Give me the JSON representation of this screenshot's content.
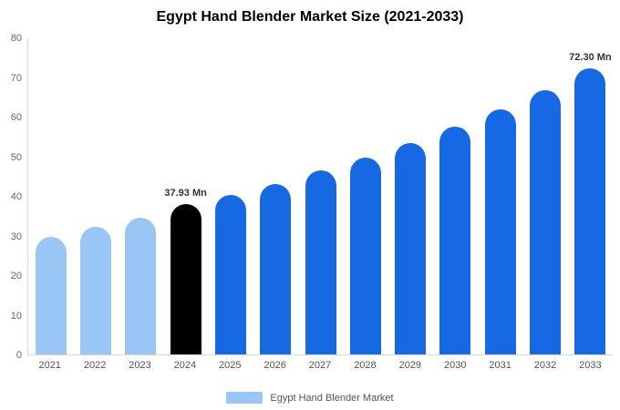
{
  "title": "Egypt Hand Blender Market Size (2021-2033)",
  "legend": {
    "label": "Egypt Hand Blender Market",
    "swatch_color": "#99C6F5"
  },
  "colors": {
    "historical": "#99C6F5",
    "base_year": "#000000",
    "forecast": "#1668E3",
    "axis_line": "#d6d6d6",
    "tick_text": "#666666",
    "annotation_text": "#333333"
  },
  "chart_data": {
    "type": "bar",
    "title": "Egypt Hand Blender Market Size (2021-2033)",
    "categories": [
      "2021",
      "2022",
      "2023",
      "2024",
      "2025",
      "2026",
      "2027",
      "2028",
      "2029",
      "2030",
      "2031",
      "2032",
      "2033"
    ],
    "values": [
      29.8,
      32.3,
      34.6,
      37.93,
      40.3,
      43.2,
      46.5,
      49.9,
      53.6,
      57.6,
      62.0,
      66.8,
      72.3
    ],
    "bar_colors": [
      "#99C6F5",
      "#99C6F5",
      "#99C6F5",
      "#000000",
      "#1668E3",
      "#1668E3",
      "#1668E3",
      "#1668E3",
      "#1668E3",
      "#1668E3",
      "#1668E3",
      "#1668E3",
      "#1668E3"
    ],
    "annotations": [
      {
        "category": "2024",
        "text": "37.93 Mn"
      },
      {
        "category": "2033",
        "text": "72.30 Mn"
      }
    ],
    "xlabel": "",
    "ylabel": "",
    "ylim": [
      0,
      80
    ],
    "yticks": [
      0,
      10,
      20,
      30,
      40,
      50,
      60,
      70,
      80
    ],
    "grid": false,
    "legend_position": "bottom",
    "unit": "Mn"
  }
}
